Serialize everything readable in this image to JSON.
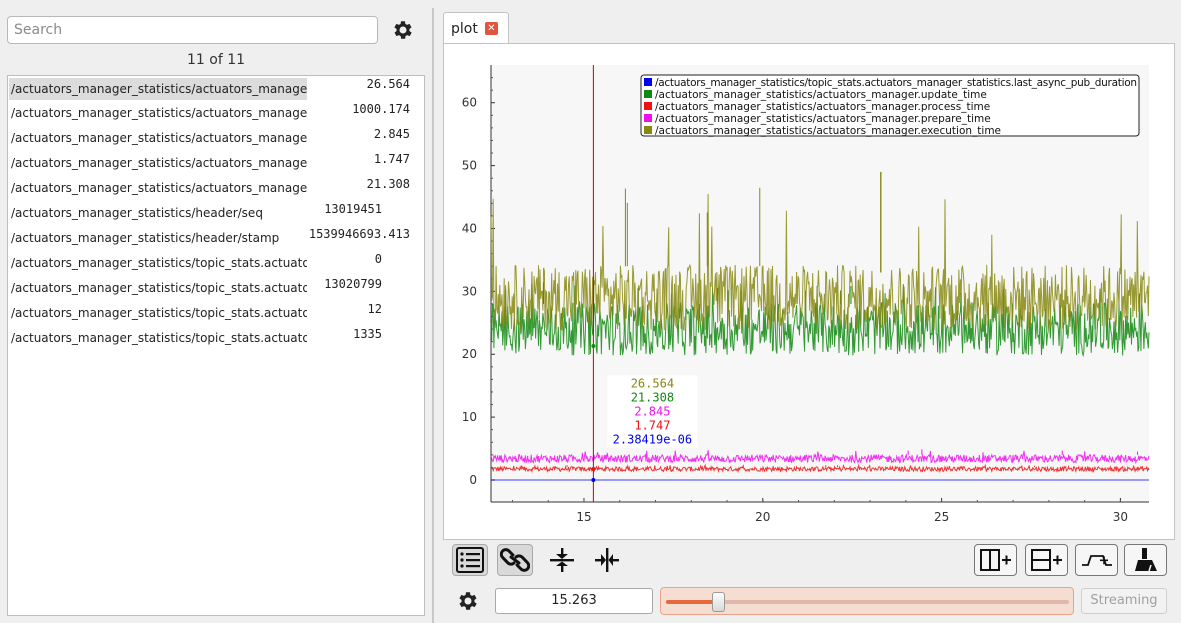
{
  "left_panel": {
    "search": {
      "placeholder": "Search",
      "value": ""
    },
    "count_label": "11 of 11",
    "rows": [
      {
        "name": "/actuators_manager_statistics/actuators_manager....",
        "value": "26.564"
      },
      {
        "name": "/actuators_manager_statistics/actuators_manager....",
        "value": "1000.174"
      },
      {
        "name": "/actuators_manager_statistics/actuators_manager....",
        "value": "2.845"
      },
      {
        "name": "/actuators_manager_statistics/actuators_manager....",
        "value": "1.747"
      },
      {
        "name": "/actuators_manager_statistics/actuators_manager....",
        "value": "21.308"
      },
      {
        "name": "/actuators_manager_statistics/header/seq",
        "value": "13019451"
      },
      {
        "name": "/actuators_manager_statistics/header/stamp",
        "value": "1539946693.413"
      },
      {
        "name": "/actuators_manager_statistics/topic_stats.actuator...",
        "value": "0"
      },
      {
        "name": "/actuators_manager_statistics/topic_stats.actuator...",
        "value": "13020799"
      },
      {
        "name": "/actuators_manager_statistics/topic_stats.actuator...",
        "value": "12"
      },
      {
        "name": "/actuators_manager_statistics/topic_stats.actuator...",
        "value": "1335"
      }
    ]
  },
  "tab": {
    "label": "plot",
    "close_glyph": "✕"
  },
  "chart_data": {
    "type": "line",
    "xlim": [
      12.4,
      30.8
    ],
    "ylim": [
      -3.5,
      66
    ],
    "x_ticks": [
      15,
      20,
      25,
      30
    ],
    "y_ticks": [
      0,
      10,
      20,
      30,
      40,
      50,
      60
    ],
    "cursor_x": 15.263,
    "legend_position": "top-right",
    "series": [
      {
        "name": "/actuators_manager_statistics/topic_stats.actuators_manager_statistics.last_async_pub_duration",
        "color": "#0000ee",
        "cursor_value": "2.38419e-06",
        "band": [
          0,
          0
        ],
        "spike": 0
      },
      {
        "name": "/actuators_manager_statistics/actuators_manager.update_time",
        "color": "#118811",
        "cursor_value": "21.308",
        "band": [
          20,
          28
        ],
        "spike": 32
      },
      {
        "name": "/actuators_manager_statistics/actuators_manager.process_time",
        "color": "#ee1111",
        "cursor_value": "1.747",
        "band": [
          1.4,
          2.1
        ],
        "spike": 2.4
      },
      {
        "name": "/actuators_manager_statistics/actuators_manager.prepare_time",
        "color": "#ee11ee",
        "cursor_value": "2.845",
        "band": [
          2.8,
          4.0
        ],
        "spike": 5
      },
      {
        "name": "/actuators_manager_statistics/actuators_manager.execution_time",
        "color": "#888811",
        "cursor_value": "26.564",
        "band": [
          24,
          34
        ],
        "spike": 49
      }
    ]
  },
  "toolbar": {
    "time_value": "15.263",
    "streaming_label": "Streaming",
    "slider_position_fraction": 0.13,
    "accent_color": "#e5693d"
  }
}
